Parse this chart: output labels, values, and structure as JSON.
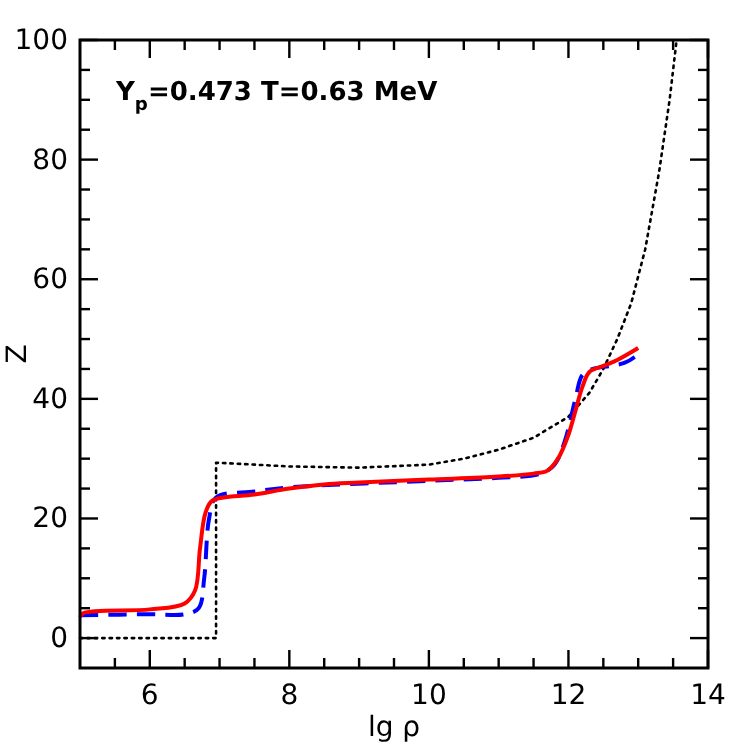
{
  "chart_data": {
    "type": "line",
    "xlabel": "lg ρ",
    "ylabel": "Z",
    "annotations": [
      "Y$_{p}$=0.473 T=0.63 MeV"
    ],
    "xlim": [
      5,
      14
    ],
    "ylim": [
      -5,
      100
    ],
    "xticks": [
      {
        "value": 5.5,
        "label": null
      },
      6,
      {
        "value": 6.5,
        "label": null
      },
      {
        "value": 7,
        "label": null
      },
      {
        "value": 7.5,
        "label": null
      },
      8,
      {
        "value": 8.5,
        "label": null
      },
      {
        "value": 9,
        "label": null
      },
      {
        "value": 9.5,
        "label": null
      },
      10,
      {
        "value": 10.5,
        "label": null
      },
      {
        "value": 11,
        "label": null
      },
      {
        "value": 11.5,
        "label": null
      },
      12,
      {
        "value": 12.5,
        "label": null
      },
      {
        "value": 13,
        "label": null
      },
      {
        "value": 13.5,
        "label": null
      },
      14
    ],
    "yticks": [
      0,
      {
        "value": 5,
        "label": null
      },
      {
        "value": 10,
        "label": null
      },
      {
        "value": 15,
        "label": null
      },
      20,
      {
        "value": 25,
        "label": null
      },
      {
        "value": 30,
        "label": null
      },
      {
        "value": 35,
        "label": null
      },
      40,
      {
        "value": 45,
        "label": null
      },
      {
        "value": 50,
        "label": null
      },
      {
        "value": 55,
        "label": null
      },
      60,
      {
        "value": 65,
        "label": null
      },
      {
        "value": 70,
        "label": null
      },
      {
        "value": 75,
        "label": null
      },
      80,
      {
        "value": 85,
        "label": null
      },
      {
        "value": 90,
        "label": null
      },
      {
        "value": 95,
        "label": null
      },
      100
    ],
    "grid": false,
    "series": [
      {
        "color": "#000000",
        "line_style": "dotted",
        "x": [
          5,
          6,
          6.95,
          6.95,
          7,
          8,
          9,
          10,
          10.5,
          11,
          11.5,
          12,
          12.3,
          12.5,
          12.7,
          12.9,
          13.1,
          13.3,
          13.45,
          13.55
        ],
        "values": [
          0,
          0,
          0,
          29.3,
          29.3,
          28.7,
          28.5,
          29,
          30,
          31.5,
          33.5,
          37,
          41,
          45,
          50,
          56,
          65,
          78,
          90,
          100
        ]
      },
      {
        "color": "#0000ff",
        "line_style": "dashed",
        "x": [
          5,
          6,
          6.5,
          6.7,
          6.78,
          6.85,
          6.95,
          7.5,
          8,
          9,
          10,
          11,
          11.6,
          11.8,
          11.95,
          12.1,
          12.2,
          12.35,
          12.6,
          12.8,
          12.95
        ],
        "values": [
          3.8,
          4,
          4,
          5,
          10,
          20,
          23.5,
          24.5,
          25.2,
          null,
          26.3,
          26.8,
          27.5,
          29,
          33,
          40,
          44,
          45,
          45.5,
          46,
          47
        ]
      },
      {
        "color": "#ff0000",
        "line_style": "solid",
        "x": [
          5,
          5.05,
          6,
          6.5,
          6.65,
          6.72,
          6.8,
          6.9,
          7.5,
          8,
          8.5,
          9,
          10,
          11,
          11.5,
          11.7,
          11.85,
          12,
          12.1,
          12.2,
          12.3,
          12.5,
          12.7,
          13
        ],
        "values": [
          3.5,
          4.2,
          4.8,
          5.8,
          8,
          15,
          21,
          23,
          24,
          25,
          25.7,
          26,
          26.5,
          27,
          27.5,
          28,
          30,
          34,
          38,
          42,
          44.5,
          45.5,
          46.5,
          48.5
        ]
      }
    ]
  }
}
